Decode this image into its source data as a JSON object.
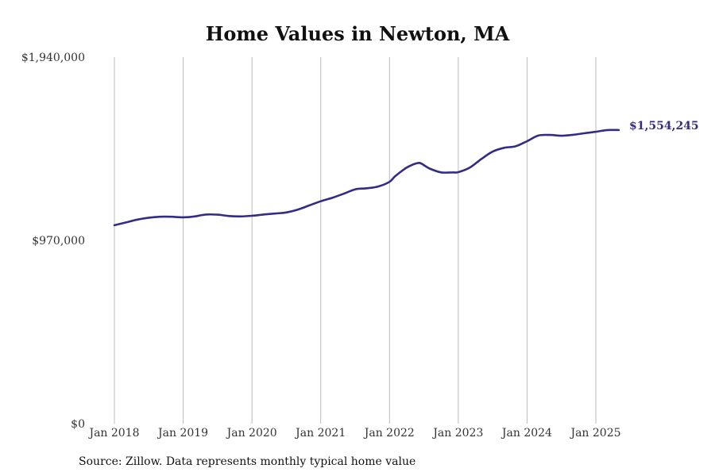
{
  "chart_data": {
    "type": "line",
    "title": "Home Values in Newton, MA",
    "xlabel": "",
    "ylabel": "",
    "source": "Source: Zillow. Data represents monthly typical home value",
    "ylim": [
      0,
      1940000
    ],
    "y_ticks": [
      {
        "value": 0,
        "label": "$0"
      },
      {
        "value": 970000,
        "label": "$970,000"
      },
      {
        "value": 1940000,
        "label": "$1,940,000"
      }
    ],
    "x_ticks": [
      {
        "value": "2018-01",
        "label": "Jan 2018"
      },
      {
        "value": "2019-01",
        "label": "Jan 2019"
      },
      {
        "value": "2020-01",
        "label": "Jan 2020"
      },
      {
        "value": "2021-01",
        "label": "Jan 2021"
      },
      {
        "value": "2022-01",
        "label": "Jan 2022"
      },
      {
        "value": "2023-01",
        "label": "Jan 2023"
      },
      {
        "value": "2024-01",
        "label": "Jan 2024"
      },
      {
        "value": "2025-01",
        "label": "Jan 2025"
      }
    ],
    "grid": {
      "vertical": true,
      "horizontal": false
    },
    "line_color": "#332c85",
    "grid_color": "#bbbbbb",
    "end_label": "$1,554,245",
    "series": [
      {
        "x": [
          "2018-01",
          "2018-03",
          "2018-05",
          "2018-07",
          "2018-09",
          "2018-11",
          "2019-01",
          "2019-03",
          "2019-05",
          "2019-07",
          "2019-09",
          "2019-11",
          "2020-01",
          "2020-03",
          "2020-05",
          "2020-07",
          "2020-09",
          "2020-11",
          "2021-01",
          "2021-03",
          "2021-05",
          "2021-07",
          "2021-09",
          "2021-11",
          "2022-01",
          "2022-02",
          "2022-04",
          "2022-06",
          "2022-07",
          "2022-08",
          "2022-10",
          "2022-12",
          "2023-01",
          "2023-03",
          "2023-05",
          "2023-07",
          "2023-09",
          "2023-11",
          "2024-01",
          "2024-03",
          "2024-05",
          "2024-07",
          "2024-09",
          "2024-11",
          "2025-01",
          "2025-03",
          "2025-05"
        ],
        "values": [
          1050000,
          1065000,
          1080000,
          1090000,
          1095000,
          1095000,
          1092000,
          1097000,
          1107000,
          1106000,
          1099000,
          1097000,
          1100000,
          1107000,
          1112000,
          1118000,
          1133000,
          1155000,
          1177000,
          1195000,
          1217000,
          1240000,
          1246000,
          1255000,
          1280000,
          1310000,
          1355000,
          1380000,
          1368000,
          1350000,
          1330000,
          1330000,
          1331000,
          1355000,
          1400000,
          1440000,
          1460000,
          1468000,
          1495000,
          1525000,
          1528000,
          1524000,
          1529000,
          1537000,
          1545000,
          1554000,
          1554245
        ]
      }
    ]
  }
}
